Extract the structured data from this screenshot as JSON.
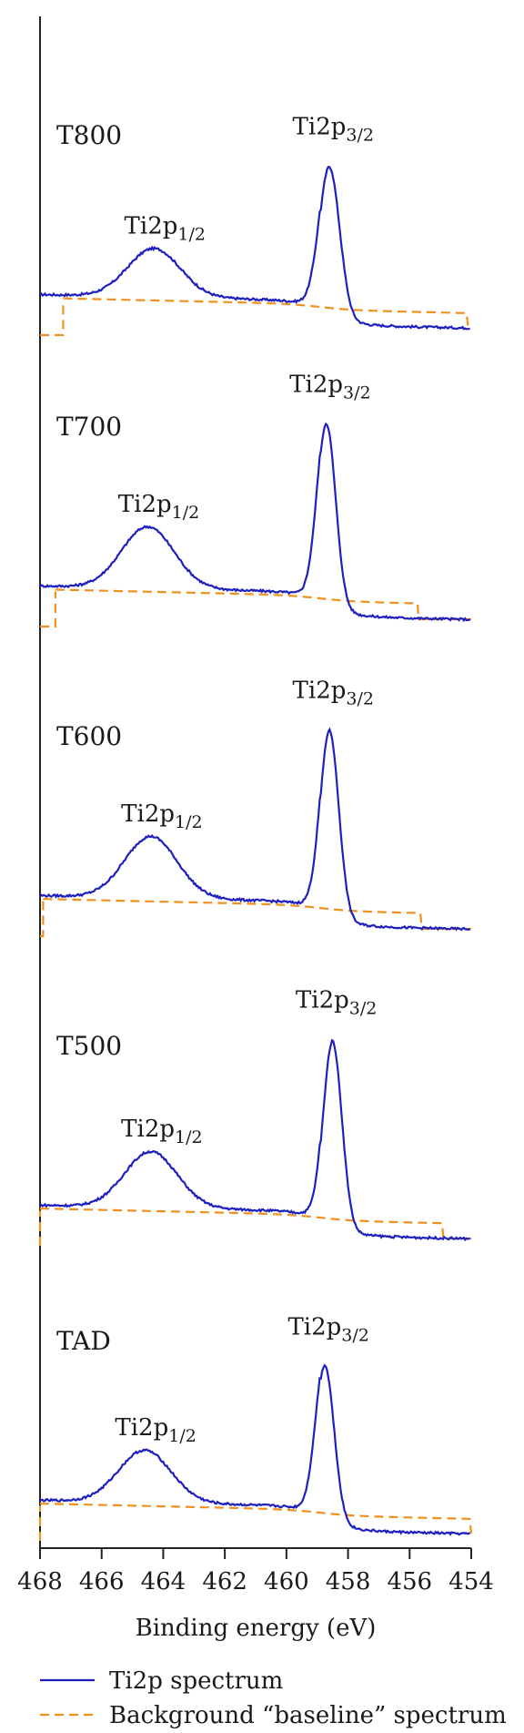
{
  "chart_data": {
    "type": "line",
    "xlabel": "Binding energy (eV)",
    "xlim": [
      468,
      454
    ],
    "x_reversed": true,
    "x_ticks": [
      468,
      466,
      464,
      462,
      460,
      458,
      456,
      454
    ],
    "x_tick_labels": [
      "468",
      "466",
      "464",
      "462",
      "460",
      "458",
      "456",
      "454"
    ],
    "y_ticks_shown": false,
    "grid": false,
    "legend_position": "bottom",
    "legend": [
      {
        "label": "Ti2p spectrum",
        "style": "solid",
        "color": "#1f1fbf"
      },
      {
        "label": "Background “baseline” spectrum",
        "style": "dashed",
        "color": "#f0901e"
      }
    ],
    "colors": {
      "spectrum": "#1f1fbf",
      "baseline": "#f0901e",
      "axis": "#222222"
    },
    "peak_labels": {
      "p12": "Ti2p",
      "p12_sub": "1/2",
      "p32": "Ti2p",
      "p32_sub": "3/2"
    },
    "panels": [
      {
        "name": "T800",
        "p12_center": 464.3,
        "p12_height": 0.26,
        "p12_width": 0.85,
        "p32_center": 458.6,
        "p32_height": 0.8,
        "p32_width": 0.33,
        "edge_left": 0.02,
        "edge_right": -0.1,
        "bg_left_step": [
          467.8,
          467.25
        ],
        "bg_right_step": [
          454.1,
          454.05
        ]
      },
      {
        "name": "T700",
        "p12_center": 464.5,
        "p12_height": 0.33,
        "p12_width": 0.85,
        "p32_center": 458.7,
        "p32_height": 0.98,
        "p32_width": 0.3,
        "edge_left": 0.02,
        "edge_right": -0.12,
        "bg_left_step": [
          467.8,
          467.5
        ],
        "bg_right_step": [
          455.7,
          455.6
        ]
      },
      {
        "name": "T600",
        "p12_center": 464.4,
        "p12_height": 0.33,
        "p12_width": 0.85,
        "p32_center": 458.6,
        "p32_height": 1.0,
        "p32_width": 0.3,
        "edge_left": 0.02,
        "edge_right": -0.12,
        "bg_left_step": [
          468.0,
          467.9
        ],
        "bg_right_step": [
          455.6,
          455.5
        ]
      },
      {
        "name": "T500",
        "p12_center": 464.4,
        "p12_height": 0.3,
        "p12_width": 0.85,
        "p32_center": 458.5,
        "p32_height": 1.0,
        "p32_width": 0.3,
        "edge_left": 0.02,
        "edge_right": -0.12,
        "bg_left_step": [
          468.0,
          468.0
        ],
        "bg_right_step": [
          454.9,
          454.8
        ]
      },
      {
        "name": "TAD",
        "p12_center": 464.6,
        "p12_height": 0.28,
        "p12_width": 0.85,
        "p32_center": 458.75,
        "p32_height": 0.83,
        "p32_width": 0.3,
        "edge_left": 0.02,
        "edge_right": -0.1,
        "bg_left_step": [
          468.0,
          468.0
        ],
        "bg_right_step": [
          454.0,
          454.0
        ]
      }
    ]
  }
}
